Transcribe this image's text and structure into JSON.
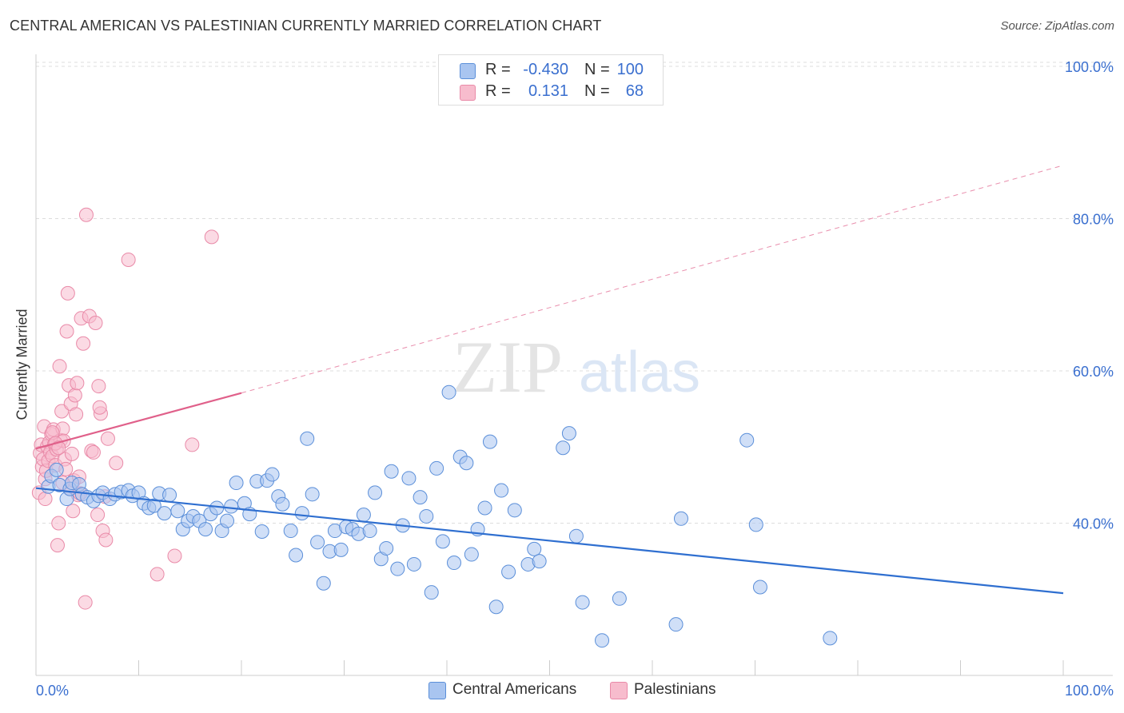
{
  "title": "CENTRAL AMERICAN VS PALESTINIAN CURRENTLY MARRIED CORRELATION CHART",
  "source": "Source: ZipAtlas.com",
  "watermark": {
    "zip": "ZIP",
    "atlas": "atlas"
  },
  "legend_top": [
    {
      "r_label": "R =",
      "r_value": "-0.430",
      "n_label": "N =",
      "n_value": "100"
    },
    {
      "r_label": "R =",
      "r_value": "0.131",
      "n_label": "N =",
      "n_value": "68"
    }
  ],
  "colors": {
    "blue_fill": "#a9c5f0",
    "blue_stroke": "#5b8fd9",
    "blue_line": "#2f6fd0",
    "pink_fill": "#f7bccd",
    "pink_stroke": "#e98aa8",
    "pink_line": "#e0608a",
    "axis_text": "#3a6fcf",
    "grid": "#dddddd"
  },
  "chart_data": {
    "type": "scatter",
    "title": "CENTRAL AMERICAN VS PALESTINIAN CURRENTLY MARRIED CORRELATION CHART",
    "xlabel": "",
    "ylabel": "Currently Married",
    "xlim": [
      0,
      100
    ],
    "ylim": [
      20,
      102
    ],
    "x_tick_labels": [
      "0.0%",
      "100.0%"
    ],
    "y_ticks": [
      40,
      60,
      80,
      100
    ],
    "y_tick_labels": [
      "40.0%",
      "60.0%",
      "80.0%",
      "100.0%"
    ],
    "grid": true,
    "legend_position": "top-center",
    "series": [
      {
        "name": "Central Americans",
        "r": -0.43,
        "n": 100,
        "trend": {
          "x": [
            0,
            100
          ],
          "y": [
            44.6,
            30.8
          ],
          "dashed_extension": false
        },
        "points": [
          [
            1.2,
            44.8
          ],
          [
            1.5,
            46.2
          ],
          [
            2.0,
            47.0
          ],
          [
            2.3,
            45.0
          ],
          [
            3.0,
            43.2
          ],
          [
            3.3,
            44.5
          ],
          [
            3.5,
            45.3
          ],
          [
            4.2,
            45.1
          ],
          [
            4.5,
            43.8
          ],
          [
            5.0,
            43.4
          ],
          [
            5.6,
            42.9
          ],
          [
            6.1,
            43.6
          ],
          [
            6.5,
            44.0
          ],
          [
            7.2,
            43.2
          ],
          [
            7.7,
            43.8
          ],
          [
            8.3,
            44.1
          ],
          [
            9.0,
            44.3
          ],
          [
            9.4,
            43.6
          ],
          [
            10.0,
            44.0
          ],
          [
            10.5,
            42.6
          ],
          [
            11.0,
            42.0
          ],
          [
            11.5,
            42.3
          ],
          [
            12.0,
            43.9
          ],
          [
            12.5,
            41.3
          ],
          [
            13.0,
            43.7
          ],
          [
            13.8,
            41.6
          ],
          [
            14.3,
            39.2
          ],
          [
            14.8,
            40.3
          ],
          [
            15.3,
            40.9
          ],
          [
            15.9,
            40.3
          ],
          [
            16.5,
            39.2
          ],
          [
            17.0,
            41.2
          ],
          [
            17.6,
            42.0
          ],
          [
            18.1,
            39.0
          ],
          [
            18.6,
            40.3
          ],
          [
            19.0,
            42.2
          ],
          [
            19.5,
            45.3
          ],
          [
            20.3,
            42.6
          ],
          [
            20.8,
            41.2
          ],
          [
            21.5,
            45.5
          ],
          [
            22.0,
            38.9
          ],
          [
            22.5,
            45.6
          ],
          [
            23.0,
            46.4
          ],
          [
            23.6,
            43.5
          ],
          [
            24.0,
            42.5
          ],
          [
            24.8,
            39.0
          ],
          [
            25.3,
            35.8
          ],
          [
            25.9,
            41.3
          ],
          [
            26.4,
            51.1
          ],
          [
            26.9,
            43.8
          ],
          [
            27.4,
            37.5
          ],
          [
            28.0,
            32.1
          ],
          [
            28.6,
            36.3
          ],
          [
            29.1,
            39.0
          ],
          [
            29.7,
            36.5
          ],
          [
            30.2,
            39.5
          ],
          [
            30.8,
            39.2
          ],
          [
            31.4,
            38.6
          ],
          [
            31.9,
            41.1
          ],
          [
            32.5,
            39.0
          ],
          [
            33.0,
            44.0
          ],
          [
            33.6,
            35.3
          ],
          [
            34.1,
            36.7
          ],
          [
            34.6,
            46.8
          ],
          [
            35.2,
            34.0
          ],
          [
            35.7,
            39.7
          ],
          [
            36.3,
            45.9
          ],
          [
            36.8,
            34.6
          ],
          [
            37.4,
            43.4
          ],
          [
            38.0,
            40.9
          ],
          [
            38.5,
            30.9
          ],
          [
            39.0,
            47.2
          ],
          [
            39.6,
            37.6
          ],
          [
            40.2,
            57.2
          ],
          [
            40.7,
            34.8
          ],
          [
            41.3,
            48.7
          ],
          [
            41.9,
            47.9
          ],
          [
            42.4,
            35.9
          ],
          [
            43.0,
            39.2
          ],
          [
            43.7,
            42.0
          ],
          [
            44.2,
            50.7
          ],
          [
            44.8,
            29.0
          ],
          [
            45.3,
            44.3
          ],
          [
            46.0,
            33.6
          ],
          [
            46.6,
            41.7
          ],
          [
            47.9,
            34.6
          ],
          [
            48.5,
            36.6
          ],
          [
            49.0,
            35.0
          ],
          [
            51.3,
            49.9
          ],
          [
            51.9,
            51.8
          ],
          [
            53.2,
            29.6
          ],
          [
            55.1,
            24.6
          ],
          [
            52.6,
            38.3
          ],
          [
            62.8,
            40.6
          ],
          [
            56.8,
            30.1
          ],
          [
            62.3,
            26.7
          ],
          [
            69.2,
            50.9
          ],
          [
            70.5,
            31.6
          ],
          [
            70.1,
            39.8
          ],
          [
            77.3,
            24.9
          ]
        ]
      },
      {
        "name": "Palestinians",
        "r": 0.131,
        "n": 68,
        "trend": {
          "x": [
            0,
            20
          ],
          "y": [
            49.8,
            57.1
          ],
          "dashed_extension_to": [
            100,
            87.0
          ]
        },
        "points": [
          [
            0.3,
            44.0
          ],
          [
            0.4,
            49.2
          ],
          [
            0.5,
            50.3
          ],
          [
            0.6,
            47.4
          ],
          [
            0.7,
            48.4
          ],
          [
            0.8,
            52.7
          ],
          [
            0.9,
            45.8
          ],
          [
            1.0,
            46.9
          ],
          [
            1.1,
            50.1
          ],
          [
            1.2,
            48.2
          ],
          [
            1.3,
            50.6
          ],
          [
            1.4,
            49.3
          ],
          [
            1.5,
            51.7
          ],
          [
            1.6,
            48.8
          ],
          [
            1.7,
            52.3
          ],
          [
            1.8,
            50.4
          ],
          [
            1.9,
            47.6
          ],
          [
            2.0,
            49.7
          ],
          [
            2.1,
            37.1
          ],
          [
            2.2,
            40.0
          ],
          [
            2.3,
            60.6
          ],
          [
            2.4,
            50.9
          ],
          [
            2.5,
            54.7
          ],
          [
            2.6,
            52.4
          ],
          [
            2.7,
            50.8
          ],
          [
            2.8,
            48.4
          ],
          [
            2.9,
            47.1
          ],
          [
            3.0,
            65.2
          ],
          [
            3.1,
            70.2
          ],
          [
            3.2,
            58.1
          ],
          [
            3.3,
            44.5
          ],
          [
            3.4,
            55.7
          ],
          [
            3.5,
            49.1
          ],
          [
            3.6,
            41.6
          ],
          [
            3.7,
            45.6
          ],
          [
            3.8,
            56.8
          ],
          [
            3.9,
            54.3
          ],
          [
            4.0,
            58.4
          ],
          [
            4.1,
            43.7
          ],
          [
            4.2,
            46.1
          ],
          [
            4.4,
            66.9
          ],
          [
            4.6,
            63.6
          ],
          [
            4.8,
            29.6
          ],
          [
            4.9,
            80.5
          ],
          [
            5.2,
            67.2
          ],
          [
            5.4,
            49.5
          ],
          [
            5.6,
            49.3
          ],
          [
            5.8,
            66.3
          ],
          [
            6.0,
            41.1
          ],
          [
            6.3,
            54.4
          ],
          [
            6.1,
            58.0
          ],
          [
            6.2,
            55.2
          ],
          [
            6.5,
            39.0
          ],
          [
            6.7,
            43.5
          ],
          [
            6.8,
            37.8
          ],
          [
            7.0,
            51.1
          ],
          [
            7.8,
            47.9
          ],
          [
            9.0,
            74.6
          ],
          [
            11.8,
            33.3
          ],
          [
            13.5,
            35.7
          ],
          [
            15.2,
            50.3
          ],
          [
            17.1,
            77.6
          ],
          [
            1.6,
            51.9
          ],
          [
            0.9,
            43.2
          ],
          [
            2.6,
            45.3
          ],
          [
            4.3,
            43.9
          ],
          [
            1.9,
            50.5
          ],
          [
            2.2,
            49.9
          ]
        ]
      }
    ]
  },
  "legend_bottom": [
    "Central Americans",
    "Palestinians"
  ]
}
